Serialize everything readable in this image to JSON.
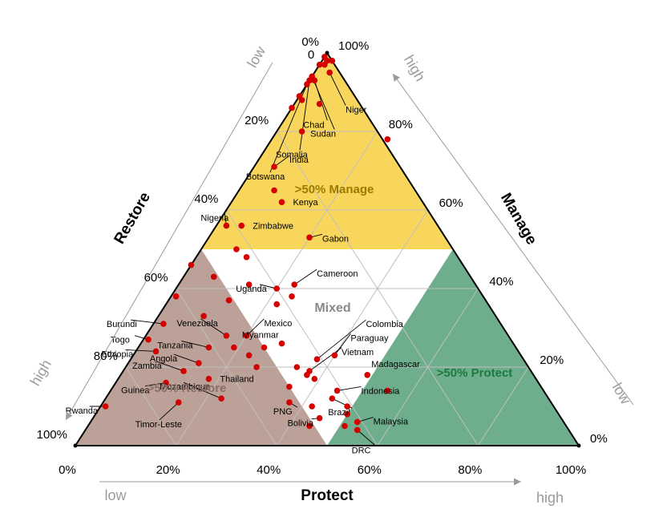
{
  "chart_data": {
    "type": "ternary",
    "axes": {
      "manage": {
        "label": "Manage",
        "low": "low",
        "high": "high"
      },
      "restore": {
        "label": "Restore",
        "low": "low",
        "high": "high"
      },
      "protect": {
        "label": "Protect",
        "low": "low",
        "high": "high"
      }
    },
    "ticks": {
      "manage": [
        "0%",
        "20%",
        "40%",
        "60%",
        "80%",
        "100%"
      ],
      "restore": [
        "0%",
        "20%",
        "40%",
        "60%",
        "80%",
        "100%"
      ],
      "protect": [
        "0%",
        "20%",
        "40%",
        "60%",
        "80%",
        "100%"
      ],
      "top_zero": "0"
    },
    "zones": {
      "manage": ">50% Manage",
      "mixed": "Mixed",
      "protect": ">50% Protect",
      "restore": ">50% Restore"
    },
    "colors": {
      "manage_zone": "#f8d65c",
      "protect_zone": "#6fae8c",
      "restore_zone": "#bba197",
      "point": "#d40000",
      "grid": "#bfbfbf",
      "axis_arrow": "#9b9b9b"
    },
    "points": [
      {
        "name": "Niger",
        "protect": 0.03,
        "manage": 0.95
      },
      {
        "name": "Chad",
        "protect": 0.01,
        "manage": 0.93
      },
      {
        "name": "Sudan",
        "protect": 0.0,
        "manage": 0.94
      },
      {
        "name": "Somalia",
        "protect": 0.0,
        "manage": 0.93
      },
      {
        "name": "Botswana",
        "protect": 0.0,
        "manage": 0.92
      },
      {
        "name": "India",
        "protect": 0.04,
        "manage": 0.71
      },
      {
        "name": "Kenya",
        "protect": 0.1,
        "manage": 0.62
      },
      {
        "name": "Nigeria",
        "protect": 0.02,
        "manage": 0.56
      },
      {
        "name": "Zimbabwe",
        "protect": 0.05,
        "manage": 0.56
      },
      {
        "name": "Gabon",
        "protect": 0.2,
        "manage": 0.53
      },
      {
        "name": "Cameroon",
        "protect": 0.23,
        "manage": 0.41
      },
      {
        "name": "Uganda",
        "protect": 0.2,
        "manage": 0.4
      },
      {
        "name": "Burundi",
        "protect": 0.02,
        "manage": 0.31
      },
      {
        "name": "Togo",
        "protect": 0.01,
        "manage": 0.27
      },
      {
        "name": "Ethiopia",
        "protect": 0.04,
        "manage": 0.24
      },
      {
        "name": "Venezuela",
        "protect": 0.16,
        "manage": 0.28
      },
      {
        "name": "Mexico",
        "protect": 0.2,
        "manage": 0.28
      },
      {
        "name": "Myanmar",
        "protect": 0.19,
        "manage": 0.25
      },
      {
        "name": "Tanzania",
        "protect": 0.14,
        "manage": 0.25
      },
      {
        "name": "Angola",
        "protect": 0.14,
        "manage": 0.21
      },
      {
        "name": "Zambia",
        "protect": 0.12,
        "manage": 0.19
      },
      {
        "name": "Thailand",
        "protect": 0.18,
        "manage": 0.17
      },
      {
        "name": "Guinea",
        "protect": 0.1,
        "manage": 0.16
      },
      {
        "name": "Mozambique",
        "protect": 0.23,
        "manage": 0.12
      },
      {
        "name": "Rwanda",
        "protect": 0.01,
        "manage": 0.1
      },
      {
        "name": "Timor-Leste",
        "protect": 0.15,
        "manage": 0.11
      },
      {
        "name": "Colombia",
        "protect": 0.37,
        "manage": 0.22
      },
      {
        "name": "Paraguay",
        "protect": 0.4,
        "manage": 0.23
      },
      {
        "name": "Vietnam",
        "protect": 0.37,
        "manage": 0.19
      },
      {
        "name": "Madagascar",
        "protect": 0.49,
        "manage": 0.18
      },
      {
        "name": "Indonesia",
        "protect": 0.45,
        "manage": 0.14
      },
      {
        "name": "PNG",
        "protect": 0.37,
        "manage": 0.11
      },
      {
        "name": "Brazil",
        "protect": 0.45,
        "manage": 0.12
      },
      {
        "name": "Bolivia",
        "protect": 0.45,
        "manage": 0.07
      },
      {
        "name": "Malaysia",
        "protect": 0.53,
        "manage": 0.06
      },
      {
        "name": "DRC",
        "protect": 0.54,
        "manage": 0.04
      },
      {
        "name": "",
        "protect": 0.0,
        "manage": 0.99
      },
      {
        "name": "",
        "protect": 0.01,
        "manage": 0.98
      },
      {
        "name": "",
        "protect": 0.0,
        "manage": 0.97
      },
      {
        "name": "",
        "protect": 0.02,
        "manage": 0.98
      },
      {
        "name": "",
        "protect": 0.01,
        "manage": 0.97
      },
      {
        "name": "",
        "protect": 0.0,
        "manage": 0.89
      },
      {
        "name": "",
        "protect": 0.01,
        "manage": 0.88
      },
      {
        "name": "",
        "protect": 0.0,
        "manage": 0.86
      },
      {
        "name": "",
        "protect": 0.05,
        "manage": 0.87
      },
      {
        "name": "",
        "protect": 0.05,
        "manage": 0.8
      },
      {
        "name": "",
        "protect": 0.23,
        "manage": 0.78
      },
      {
        "name": "",
        "protect": 0.07,
        "manage": 0.65
      },
      {
        "name": "",
        "protect": 0.07,
        "manage": 0.5
      },
      {
        "name": "",
        "protect": 0.1,
        "manage": 0.48
      },
      {
        "name": "",
        "protect": 0.0,
        "manage": 0.46
      },
      {
        "name": "",
        "protect": 0.06,
        "manage": 0.43
      },
      {
        "name": "",
        "protect": 0.14,
        "manage": 0.41
      },
      {
        "name": "",
        "protect": 0.01,
        "manage": 0.38
      },
      {
        "name": "",
        "protect": 0.12,
        "manage": 0.37
      },
      {
        "name": "",
        "protect": 0.22,
        "manage": 0.36
      },
      {
        "name": "",
        "protect": 0.24,
        "manage": 0.38
      },
      {
        "name": "",
        "protect": 0.09,
        "manage": 0.33
      },
      {
        "name": "",
        "protect": 0.25,
        "manage": 0.25
      },
      {
        "name": "",
        "protect": 0.28,
        "manage": 0.26
      },
      {
        "name": "",
        "protect": 0.23,
        "manage": 0.23
      },
      {
        "name": "",
        "protect": 0.26,
        "manage": 0.2
      },
      {
        "name": "",
        "protect": 0.34,
        "manage": 0.2
      },
      {
        "name": "",
        "protect": 0.37,
        "manage": 0.18
      },
      {
        "name": "",
        "protect": 0.39,
        "manage": 0.17
      },
      {
        "name": "",
        "protect": 0.35,
        "manage": 0.15
      },
      {
        "name": "",
        "protect": 0.42,
        "manage": 0.1
      },
      {
        "name": "",
        "protect": 0.49,
        "manage": 0.1
      },
      {
        "name": "",
        "protect": 0.5,
        "manage": 0.08
      },
      {
        "name": "",
        "protect": 0.55,
        "manage": 0.14
      },
      {
        "name": "",
        "protect": 0.44,
        "manage": 0.05
      },
      {
        "name": "",
        "protect": 0.51,
        "manage": 0.05
      }
    ]
  }
}
